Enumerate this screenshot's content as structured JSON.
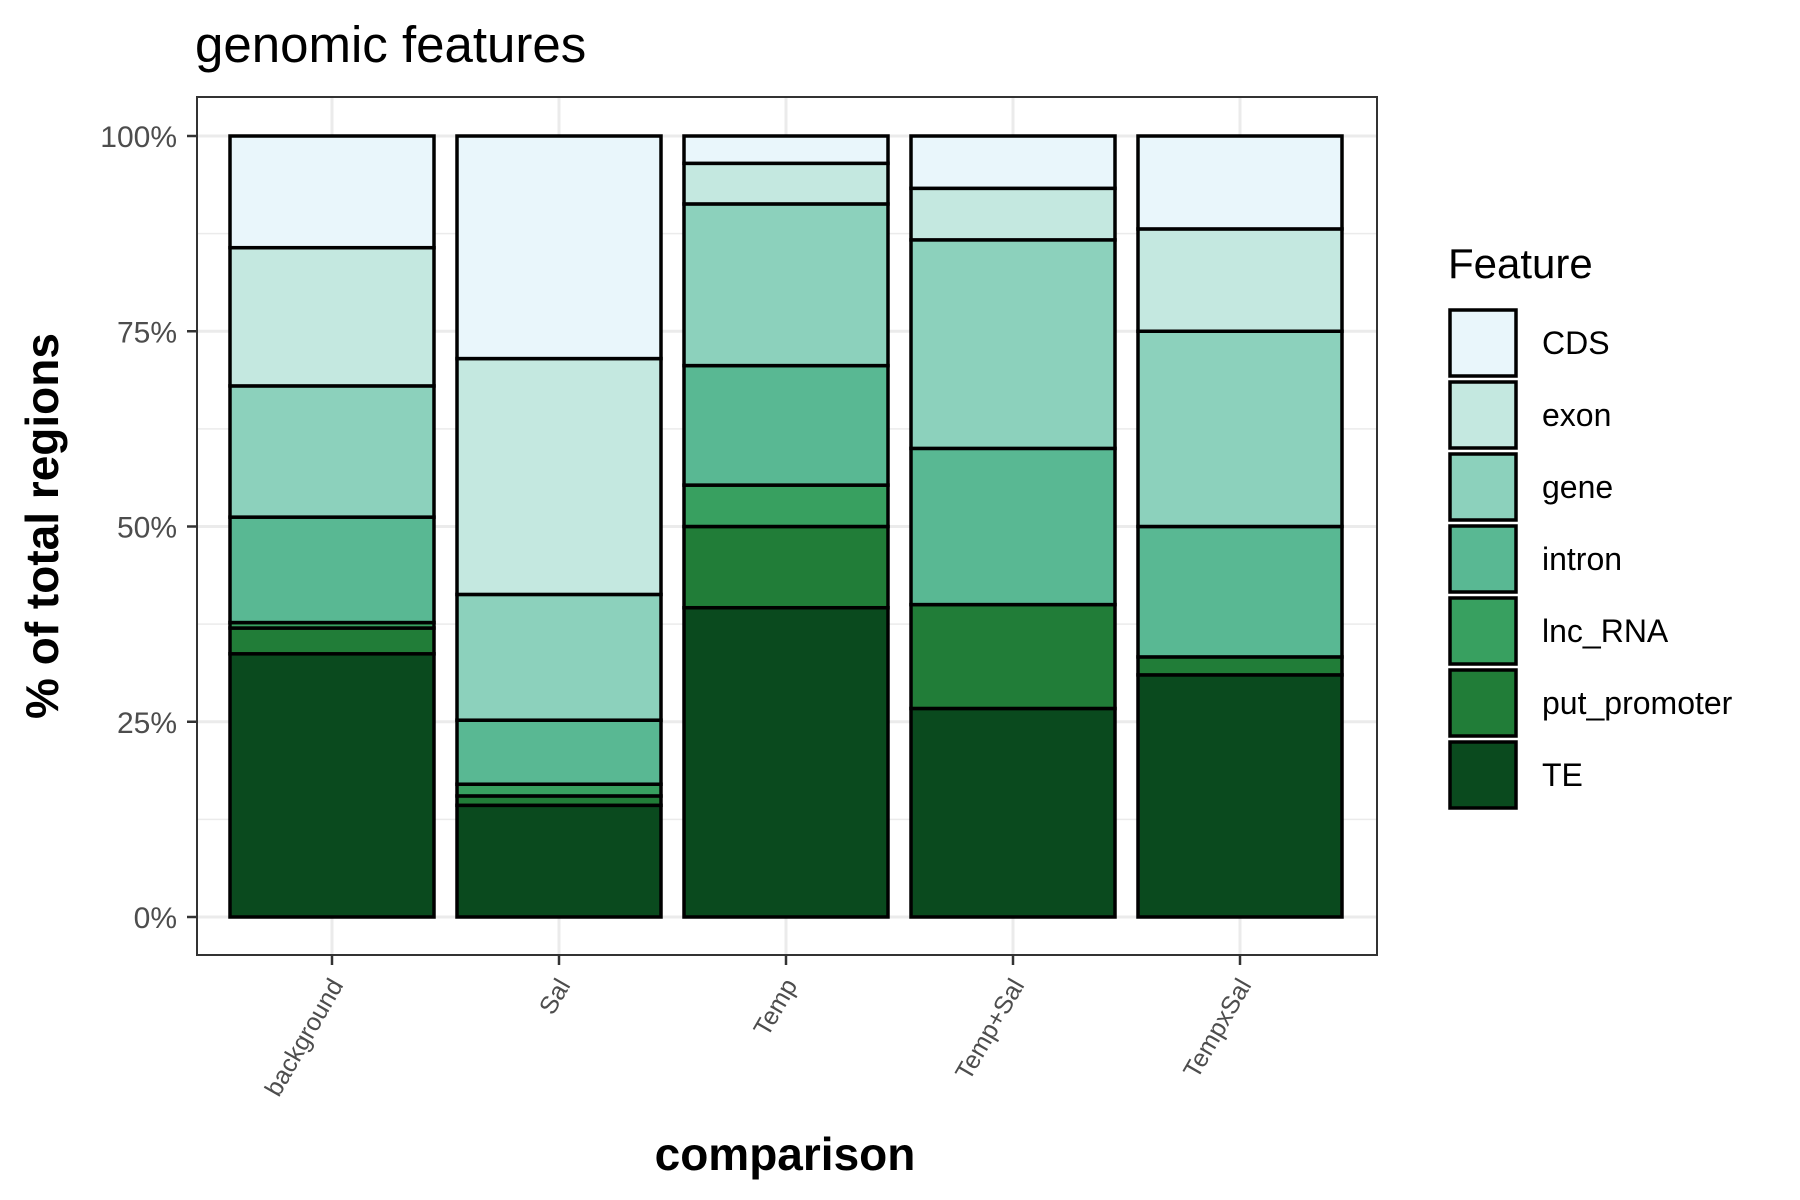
{
  "chart_data": {
    "type": "bar",
    "stacked": true,
    "title": "genomic features",
    "xlabel": "comparison",
    "ylabel": "% of total regions",
    "ylim": [
      0,
      1
    ],
    "yticks": [
      0,
      0.25,
      0.5,
      0.75,
      1
    ],
    "ytick_labels": [
      "0%",
      "25%",
      "50%",
      "75%",
      "100%"
    ],
    "grid": true,
    "categories": [
      "background",
      "Sal",
      "Temp",
      "Temp+Sal",
      "TempxSal"
    ],
    "legend": {
      "title": "Feature",
      "position": "right",
      "entries": [
        "CDS",
        "exon",
        "gene",
        "intron",
        "lnc_RNA",
        "put_promoter",
        "TE"
      ]
    },
    "series": [
      {
        "name": "TE",
        "color": "#0a4a1e",
        "values": [
          0.337,
          0.143,
          0.396,
          0.267,
          0.31
        ]
      },
      {
        "name": "put_promoter",
        "color": "#217d38",
        "values": [
          0.033,
          0.012,
          0.104,
          0.133,
          0.023
        ]
      },
      {
        "name": "lnc_RNA",
        "color": "#38a060",
        "values": [
          0.007,
          0.015,
          0.053,
          0.0,
          0.0
        ]
      },
      {
        "name": "intron",
        "color": "#59b893",
        "values": [
          0.135,
          0.082,
          0.153,
          0.2,
          0.167
        ]
      },
      {
        "name": "gene",
        "color": "#8cd1bc",
        "values": [
          0.168,
          0.161,
          0.207,
          0.267,
          0.25
        ]
      },
      {
        "name": "exon",
        "color": "#c4e8e0",
        "values": [
          0.177,
          0.302,
          0.052,
          0.066,
          0.131
        ]
      },
      {
        "name": "CDS",
        "color": "#e9f6fb",
        "values": [
          0.143,
          0.285,
          0.035,
          0.067,
          0.119
        ]
      }
    ]
  }
}
